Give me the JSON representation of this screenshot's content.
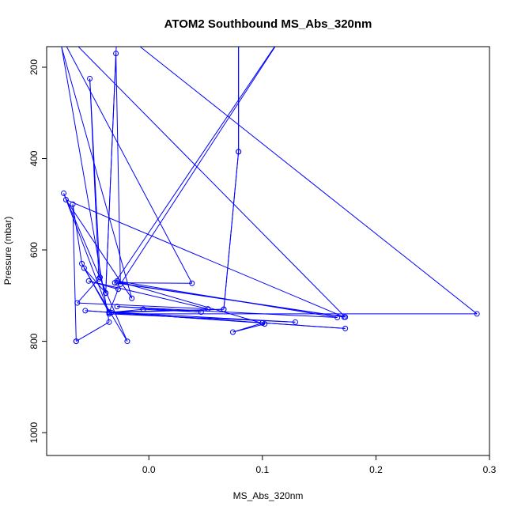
{
  "chart_data": {
    "type": "line",
    "title": "ATOM2 Southbound MS_Abs_320nm",
    "xlabel": "MS_Abs_320nm",
    "ylabel": "Pressure (mbar)",
    "xlim": [
      -0.09,
      0.3
    ],
    "ylim": [
      1050,
      155
    ],
    "y_reversed": true,
    "x_ticks": [
      0.0,
      0.1,
      0.2,
      0.3
    ],
    "x_tick_labels": [
      "0.0",
      "0.1",
      "0.2",
      "0.3"
    ],
    "y_ticks": [
      200,
      400,
      600,
      800,
      1000
    ],
    "y_tick_labels": [
      "200",
      "400",
      "600",
      "800",
      "1000"
    ],
    "color": "#0000ff",
    "marker": "open-circle",
    "grid": false,
    "series": [
      {
        "points": [
          [
            -0.064,
            800
          ],
          [
            -0.067,
            500
          ],
          [
            -0.059,
            630
          ],
          [
            -0.035,
            737
          ],
          [
            -0.075,
            476
          ],
          [
            -0.019,
            800
          ],
          [
            -0.057,
            640
          ],
          [
            -0.038,
            694
          ],
          [
            -0.043,
            660
          ],
          [
            -0.052,
            225
          ],
          [
            -0.044,
            663
          ],
          [
            -0.063,
            716
          ],
          [
            0.052,
            729
          ],
          [
            -0.053,
            668
          ],
          [
            -0.027,
            686
          ],
          [
            -0.035,
            737
          ],
          [
            -0.005,
            730
          ],
          [
            0.046,
            736
          ],
          [
            -0.028,
            724
          ],
          [
            0.166,
            748
          ],
          [
            -0.028,
            668
          ],
          [
            0.102,
            762
          ],
          [
            0.074,
            780
          ],
          [
            0.1,
            760
          ],
          [
            -0.056,
            733
          ],
          [
            0.173,
            772
          ],
          [
            -0.033,
            737
          ],
          [
            0.066,
            730
          ],
          [
            0.079,
            385
          ],
          [
            0.079,
            150
          ],
          [
            0.079,
            385
          ],
          [
            0.066,
            730
          ],
          [
            -0.035,
            736
          ],
          [
            0.129,
            758
          ],
          [
            -0.035,
            740
          ],
          [
            0.289,
            740
          ],
          [
            -0.028,
            115
          ],
          [
            -0.038,
            695
          ],
          [
            -0.029,
            170
          ],
          [
            -0.025,
            675
          ],
          [
            0.123,
            110
          ],
          [
            -0.03,
            672
          ],
          [
            0.172,
            747
          ],
          [
            -0.073,
            490
          ],
          [
            -0.015,
            706
          ],
          [
            -0.082,
            110
          ],
          [
            0.038,
            673
          ],
          [
            -0.028,
            672
          ],
          [
            0.173,
            747
          ],
          [
            -0.08,
            110
          ],
          [
            -0.035,
            758
          ],
          [
            -0.064,
            800
          ]
        ]
      }
    ]
  }
}
